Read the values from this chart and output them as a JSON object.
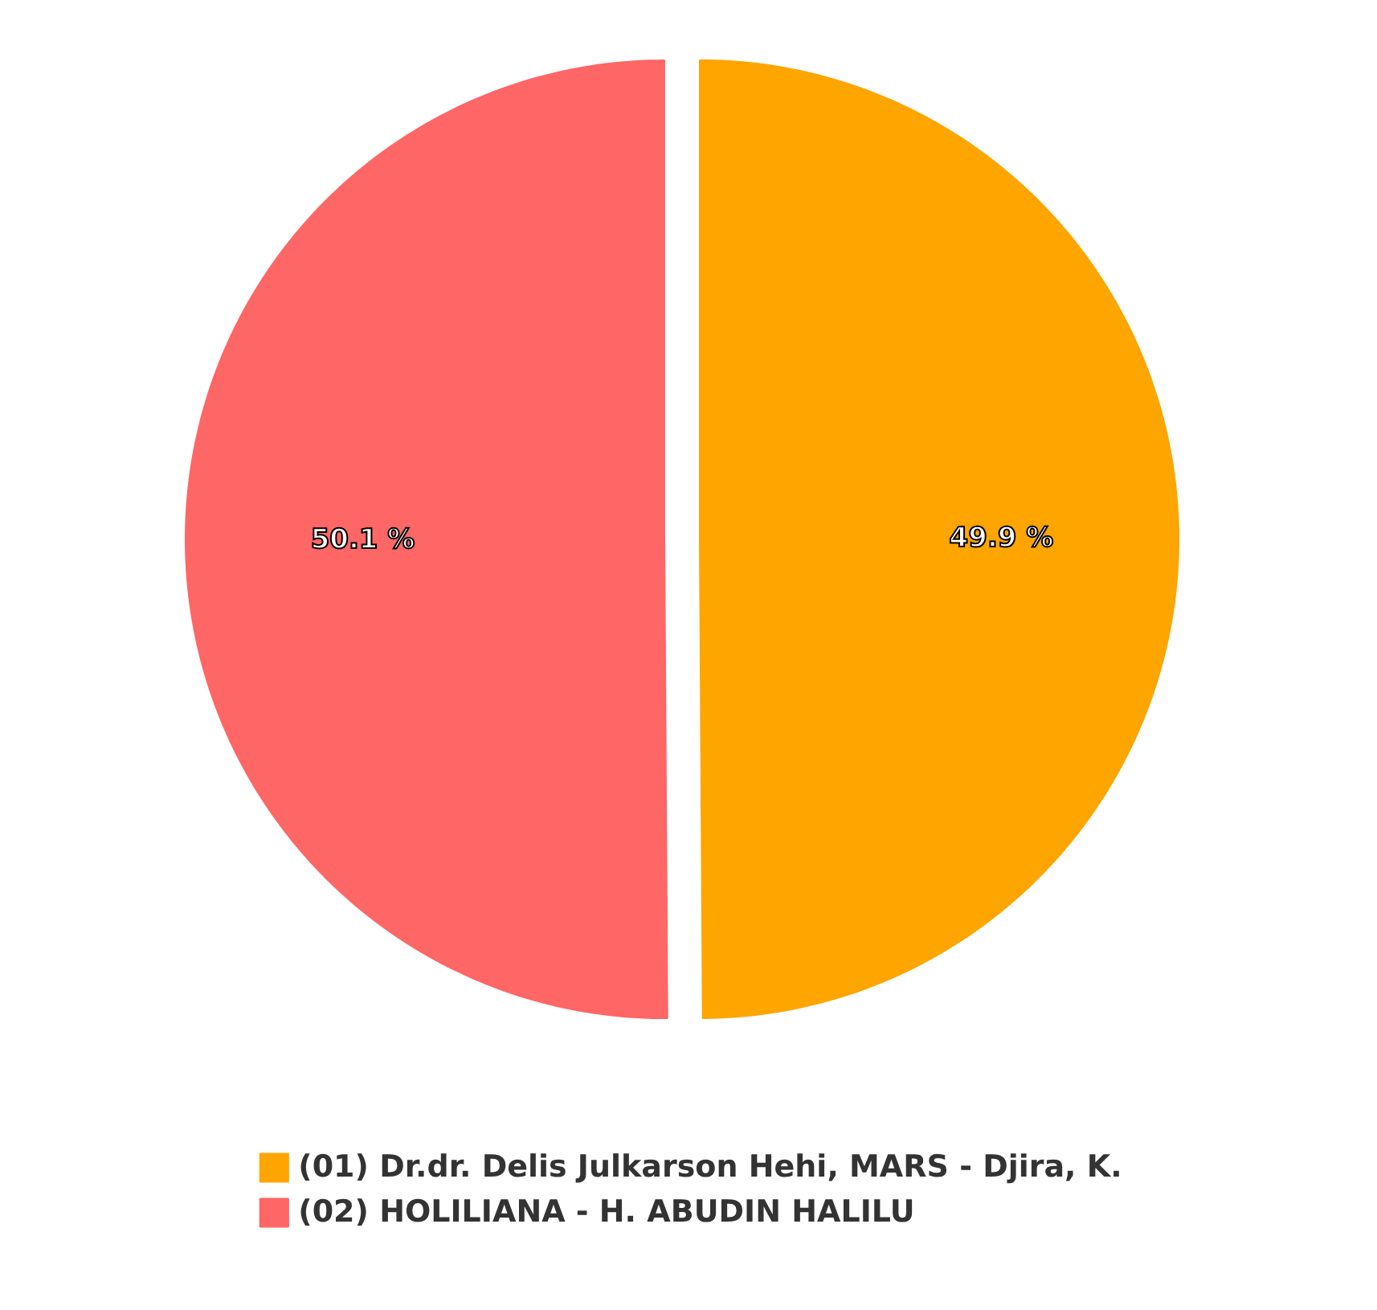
{
  "chart_data": {
    "type": "pie",
    "categories": [
      "(01) Dr.dr. Delis Julkarson Hehi, MARS - Djira, K.",
      "(02) HOLILIANA - H. ABUDIN HALILU"
    ],
    "values": [
      49.9,
      50.1
    ],
    "colors": [
      "#ffa500",
      "#ff6666"
    ],
    "value_labels": [
      "49.9 %",
      "50.1 %"
    ],
    "legend": "bottom"
  }
}
